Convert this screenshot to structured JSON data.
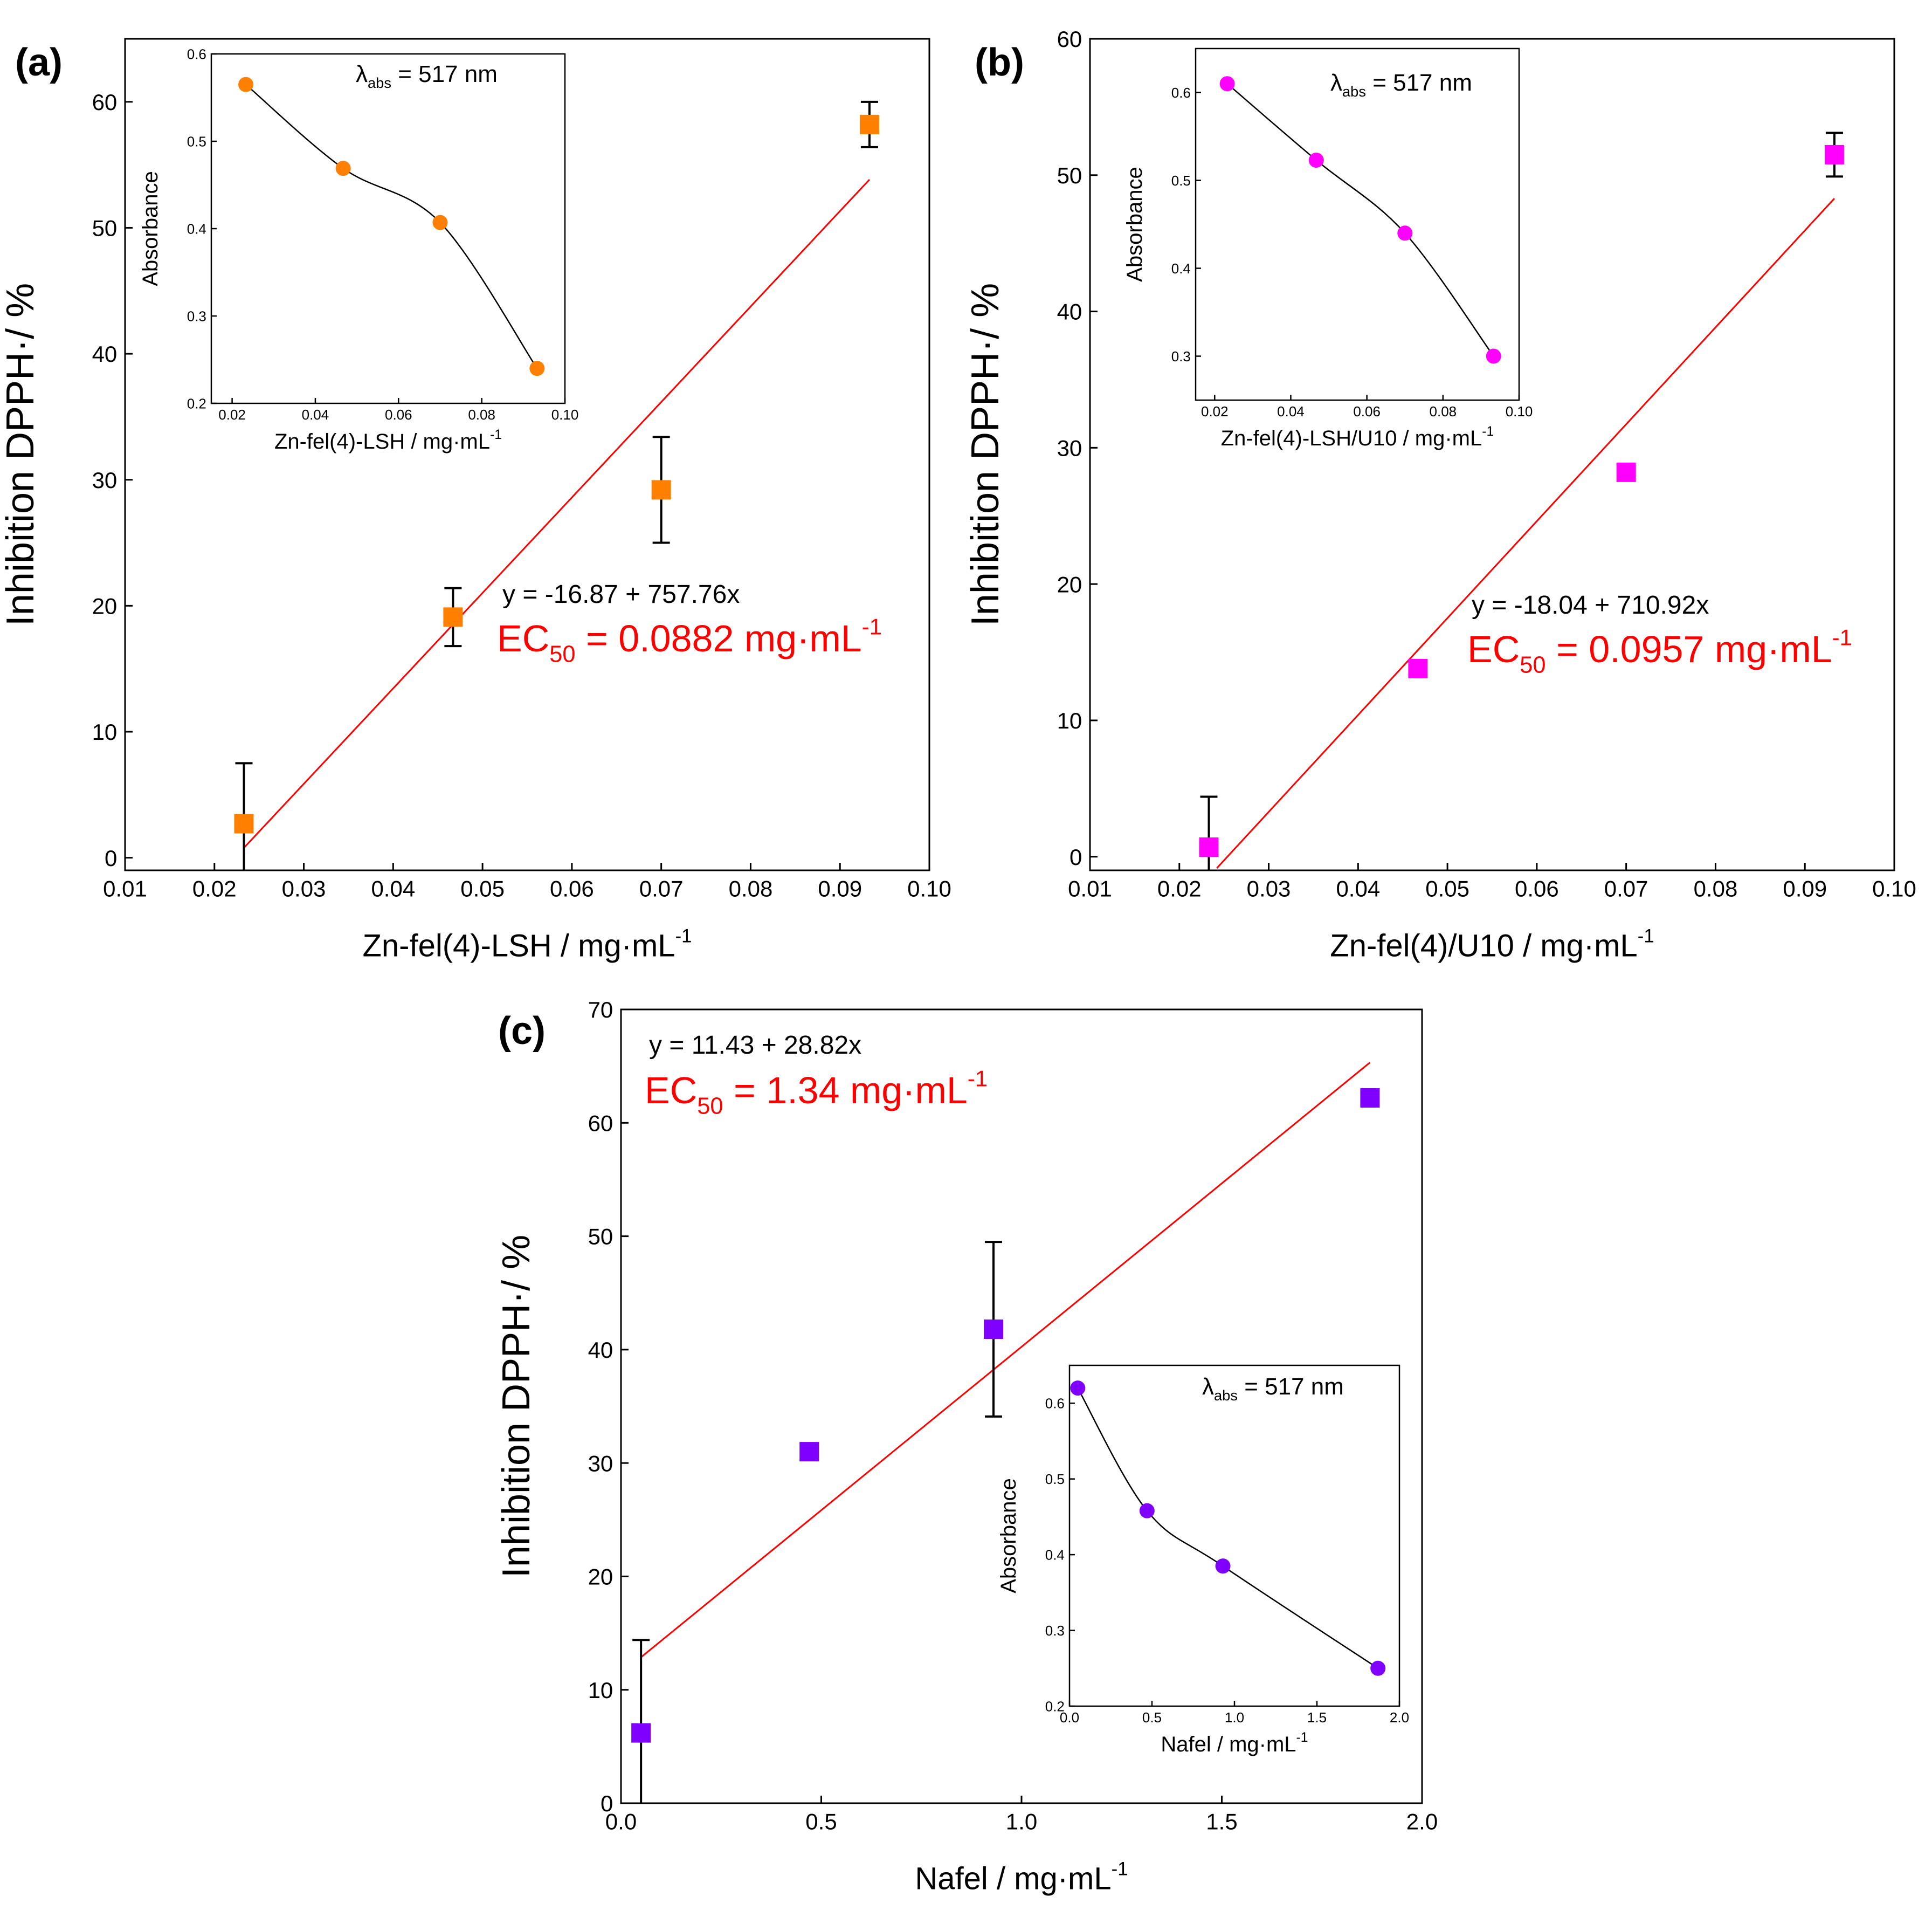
{
  "colors": {
    "fit_line": "#ff0000",
    "annotation_red": "#ff0000",
    "axis": "#000000",
    "panel_a_marker": "#ff8000",
    "panel_b_marker": "#ff00ff",
    "panel_c_marker": "#8000ff",
    "error_bar": "#000000",
    "inset_curve": "#000000"
  },
  "chart_data": [
    {
      "id": "a",
      "panel_label": "(a)",
      "type": "scatter",
      "title": "",
      "xlabel": "Zn-fel(4)-LSH / mg·mL",
      "xlabel_sup": "-1",
      "ylabel": "Inhibition DPPH·/ %",
      "xlim": [
        0.01,
        0.1
      ],
      "ylim": [
        -1,
        65
      ],
      "xticks": [
        0.01,
        0.02,
        0.03,
        0.04,
        0.05,
        0.06,
        0.07,
        0.08,
        0.09,
        0.1
      ],
      "xtick_labels": [
        "0.01",
        "0.02",
        "0.03",
        "0.04",
        "0.05",
        "0.06",
        "0.07",
        "0.08",
        "0.09",
        "0.10"
      ],
      "yticks": [
        0,
        10,
        20,
        30,
        40,
        50,
        60
      ],
      "ytick_labels": [
        "0",
        "10",
        "20",
        "30",
        "40",
        "50",
        "60"
      ],
      "series": [
        {
          "name": "Inhibition DPPH",
          "marker": "square",
          "x": [
            0.0233,
            0.0467,
            0.07,
            0.0933
          ],
          "y": [
            2.7,
            19.1,
            29.2,
            58.2
          ],
          "yerr": [
            4.8,
            2.3,
            4.2,
            1.8
          ]
        }
      ],
      "fit": {
        "intercept": -16.87,
        "slope": 757.76,
        "x_range": [
          0.0233,
          0.0933
        ]
      },
      "fit_text": "y = -16.87 + 757.76x",
      "ec50": {
        "prefix": "EC",
        "sub": "50",
        "value_text": " = 0.0882 mg·mL",
        "sup": "-1"
      },
      "inset": {
        "xlabel": "Zn-fel(4)-LSH / mg·mL",
        "xlabel_sup": "-1",
        "ylabel": "Absorbance",
        "xlim": [
          0.015,
          0.1
        ],
        "ylim": [
          0.2,
          0.6
        ],
        "xticks": [
          0.02,
          0.04,
          0.06,
          0.08,
          0.1
        ],
        "xtick_labels": [
          "0.02",
          "0.04",
          "0.06",
          "0.08",
          "0.10"
        ],
        "yticks": [
          0.2,
          0.3,
          0.4,
          0.5,
          0.6
        ],
        "ytick_labels": [
          "0.2",
          "0.3",
          "0.4",
          "0.5",
          "0.6"
        ],
        "x": [
          0.0233,
          0.0467,
          0.07,
          0.0933
        ],
        "y": [
          0.565,
          0.469,
          0.407,
          0.24
        ],
        "lambda_label": {
          "symbol": "λ",
          "sub": "abs",
          "text": " = 517 nm"
        }
      }
    },
    {
      "id": "b",
      "panel_label": "(b)",
      "type": "scatter",
      "title": "",
      "xlabel": "Zn-fel(4)/U10 / mg·mL",
      "xlabel_sup": "-1",
      "ylabel": "Inhibition DPPH·/ %",
      "xlim": [
        0.01,
        0.1
      ],
      "ylim": [
        -1,
        60
      ],
      "xticks": [
        0.01,
        0.02,
        0.03,
        0.04,
        0.05,
        0.06,
        0.07,
        0.08,
        0.09,
        0.1
      ],
      "xtick_labels": [
        "0.01",
        "0.02",
        "0.03",
        "0.04",
        "0.05",
        "0.06",
        "0.07",
        "0.08",
        "0.09",
        "0.10"
      ],
      "yticks": [
        0,
        10,
        20,
        30,
        40,
        50,
        60
      ],
      "ytick_labels": [
        "0",
        "10",
        "20",
        "30",
        "40",
        "50",
        "60"
      ],
      "series": [
        {
          "name": "Inhibition DPPH",
          "marker": "square",
          "x": [
            0.0233,
            0.0467,
            0.07,
            0.0933
          ],
          "y": [
            0.7,
            13.8,
            28.2,
            51.5
          ],
          "yerr": [
            3.7,
            0.2,
            0.5,
            1.6
          ]
        }
      ],
      "fit": {
        "intercept": -18.04,
        "slope": 710.92,
        "x_range": [
          0.0242,
          0.0933
        ]
      },
      "fit_text": "y = -18.04 + 710.92x",
      "ec50": {
        "prefix": "EC",
        "sub": "50",
        "value_text": " = 0.0957 mg·mL",
        "sup": "-1"
      },
      "inset": {
        "xlabel": "Zn-fel(4)-LSH/U10 / mg·mL",
        "xlabel_sup": "-1",
        "ylabel": "Absorbance",
        "xlim": [
          0.015,
          0.1
        ],
        "ylim": [
          0.25,
          0.65
        ],
        "xticks": [
          0.02,
          0.04,
          0.06,
          0.08,
          0.1
        ],
        "xtick_labels": [
          "0.02",
          "0.04",
          "0.06",
          "0.08",
          "0.10"
        ],
        "yticks": [
          0.3,
          0.4,
          0.5,
          0.6
        ],
        "ytick_labels": [
          "0.3",
          "0.4",
          "0.5",
          "0.6"
        ],
        "x": [
          0.0233,
          0.0467,
          0.07,
          0.0933
        ],
        "y": [
          0.61,
          0.523,
          0.44,
          0.3
        ],
        "lambda_label": {
          "symbol": "λ",
          "sub": "abs",
          "text": " = 517 nm"
        }
      }
    },
    {
      "id": "c",
      "panel_label": "(c)",
      "type": "scatter",
      "title": "",
      "xlabel": "Nafel / mg·mL",
      "xlabel_sup": "-1",
      "ylabel": "Inhibition DPPH·/ %",
      "xlim": [
        0.0,
        2.0
      ],
      "ylim": [
        0,
        70
      ],
      "xticks": [
        0.0,
        0.5,
        1.0,
        1.5,
        2.0
      ],
      "xtick_labels": [
        "0.0",
        "0.5",
        "1.0",
        "1.5",
        "2.0"
      ],
      "yticks": [
        0,
        10,
        20,
        30,
        40,
        50,
        60,
        70
      ],
      "ytick_labels": [
        "0",
        "10",
        "20",
        "30",
        "40",
        "50",
        "60",
        "70"
      ],
      "series": [
        {
          "name": "Inhibition DPPH",
          "marker": "square",
          "x": [
            0.05,
            0.47,
            0.93,
            1.87
          ],
          "y": [
            6.2,
            31.0,
            41.8,
            62.2
          ],
          "yerr": [
            8.2,
            0.5,
            7.7,
            0.7
          ]
        }
      ],
      "fit": {
        "intercept": 11.43,
        "slope": 28.82,
        "x_range": [
          0.05,
          1.87
        ]
      },
      "fit_text": "y = 11.43 + 28.82x",
      "ec50": {
        "prefix": "EC",
        "sub": "50",
        "value_text": " = 1.34 mg·mL",
        "sup": "-1"
      },
      "inset": {
        "xlabel": "Nafel / mg·mL",
        "xlabel_sup": "-1",
        "ylabel": "Absorbance",
        "xlim": [
          0.0,
          2.0
        ],
        "ylim": [
          0.2,
          0.65
        ],
        "xticks": [
          0.0,
          0.5,
          1.0,
          1.5,
          2.0
        ],
        "xtick_labels": [
          "0.0",
          "0.5",
          "1.0",
          "1.5",
          "2.0"
        ],
        "yticks": [
          0.2,
          0.3,
          0.4,
          0.5,
          0.6
        ],
        "ytick_labels": [
          "0.2",
          "0.3",
          "0.4",
          "0.5",
          "0.6"
        ],
        "x": [
          0.05,
          0.47,
          0.93,
          1.87
        ],
        "y": [
          0.62,
          0.458,
          0.385,
          0.25
        ],
        "lambda_label": {
          "symbol": "λ",
          "sub": "abs",
          "text": " = 517 nm"
        }
      }
    }
  ]
}
